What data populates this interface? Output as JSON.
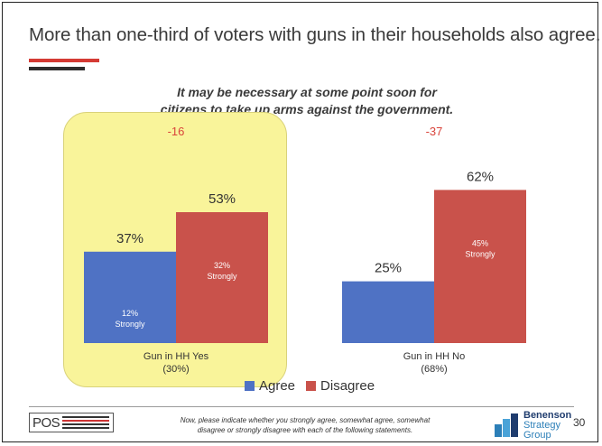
{
  "slide": {
    "headline": "More than one-third of voters with guns in their households also agree.",
    "question_line1": "It may be necessary at some point soon for",
    "question_line2": "citizens to take up arms against the government.",
    "footnote_line1": "Now, please indicate whether you strongly agree, somewhat agree, somewhat",
    "footnote_line2": "disagree or strongly disagree with each of the following statements.",
    "page_number": "30",
    "logo_left": "POS",
    "logo_right": [
      "Benenson",
      "Strategy",
      "Group"
    ]
  },
  "colors": {
    "agree": "#4f72c4",
    "disagree": "#c9524b",
    "net": "#d9443b",
    "highlight": "#f9f49a"
  },
  "chart_data": {
    "type": "bar",
    "categories": [
      "Gun in HH Yes",
      "Gun in HH No"
    ],
    "category_sublabels": [
      "(30%)",
      "(68%)"
    ],
    "net_labels": [
      "-16",
      "-37"
    ],
    "series": [
      {
        "name": "Agree",
        "values": [
          37,
          25
        ],
        "value_labels": [
          "37%",
          "25%"
        ],
        "inner_labels": [
          "12%\nStrongly",
          ""
        ]
      },
      {
        "name": "Disagree",
        "values": [
          53,
          62
        ],
        "value_labels": [
          "53%",
          "62%"
        ],
        "inner_labels": [
          "32%\nStrongly",
          "45%\nStrongly"
        ]
      }
    ],
    "legend": [
      "Agree",
      "Disagree"
    ],
    "legend_position": "bottom",
    "highlighted_category": "Gun in HH Yes",
    "ylim": [
      0,
      70
    ],
    "grid": false
  }
}
